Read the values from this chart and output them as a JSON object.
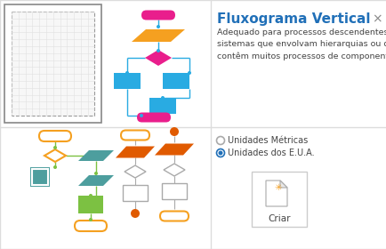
{
  "bg_color": "#f0f0f0",
  "panel_bg": "#ffffff",
  "title": "Fluxograma Vertical",
  "title_color": "#2170B8",
  "title_fontsize": 11,
  "close_char": "×",
  "description": "Adequado para processos descendentes ou\nsistemas que envolvam hierarquias ou que\ncontêm muitos processos de componentes.",
  "desc_fontsize": 6.8,
  "desc_color": "#444444",
  "radio1": "Unidades Métricas",
  "radio2": "Unidades dos E.U.A.",
  "radio_fontsize": 7.0,
  "criar_label": "Criar",
  "criar_fontsize": 7.5,
  "border_color": "#cccccc",
  "grid_color": "#e0e0e0",
  "pink": "#E91E8C",
  "orange": "#F5A020",
  "blue": "#29ABE2",
  "teal": "#4D9E9E",
  "green": "#7CC142",
  "dark_orange": "#E05A00",
  "gold": "#F5A020",
  "gray": "#aaaaaa",
  "sep_color": "#dddddd"
}
